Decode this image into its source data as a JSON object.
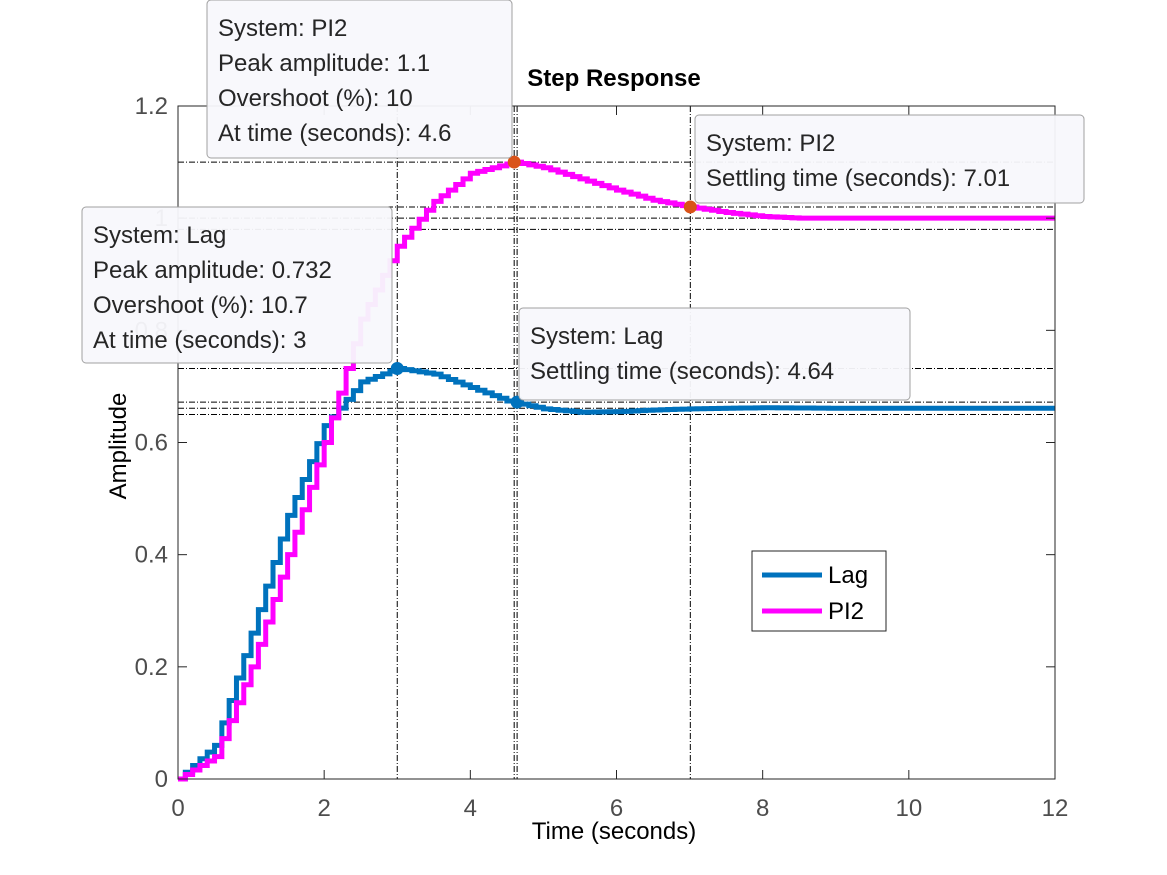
{
  "chart_data": {
    "type": "line",
    "title": "Step Response",
    "xlabel": "Time (seconds)",
    "ylabel": "Amplitude",
    "xlim": [
      0,
      12
    ],
    "ylim": [
      0,
      1.2
    ],
    "xticks": [
      0,
      2,
      4,
      6,
      8,
      10,
      12
    ],
    "yticks": [
      0,
      0.2,
      0.4,
      0.6,
      0.8,
      1,
      1.2
    ],
    "xtick_labels": [
      "0",
      "2",
      "4",
      "6",
      "8",
      "10",
      "12"
    ],
    "ytick_labels": [
      "0",
      "0.2",
      "0.4",
      "0.6",
      "0.8",
      "1",
      "1.2"
    ],
    "grid": false,
    "legend_position": "lower-right",
    "series": [
      {
        "name": "Lag",
        "color": "#0072BD",
        "sample_time": 0.1,
        "x": [
          0,
          0.5,
          1,
          1.5,
          2,
          2.5,
          3,
          3.5,
          4,
          4.5,
          5,
          5.5,
          6,
          6.5,
          7,
          8,
          9,
          10,
          11,
          12
        ],
        "y": [
          0,
          0.06,
          0.26,
          0.47,
          0.63,
          0.708,
          0.732,
          0.722,
          0.698,
          0.674,
          0.66,
          0.654,
          0.655,
          0.658,
          0.66,
          0.662,
          0.661,
          0.661,
          0.661,
          0.661
        ]
      },
      {
        "name": "PI2",
        "color": "#FF00FF",
        "sample_time": 0.1,
        "x": [
          0,
          0.5,
          1,
          1.5,
          2,
          2.5,
          3,
          3.5,
          4,
          4.6,
          5,
          5.5,
          6,
          6.5,
          7,
          7.5,
          8,
          8.5,
          9,
          10,
          11,
          12
        ],
        "y": [
          0,
          0.04,
          0.2,
          0.4,
          0.6,
          0.82,
          0.95,
          1.03,
          1.08,
          1.1,
          1.09,
          1.07,
          1.05,
          1.032,
          1.02,
          1.01,
          1.003,
          1.0,
          1.0,
          1.0,
          1.0,
          1.0
        ]
      }
    ],
    "markers": [
      {
        "series": "PI2",
        "x": 4.6,
        "y": 1.1,
        "color": "#D95319"
      },
      {
        "series": "PI2",
        "x": 7.01,
        "y": 1.02,
        "color": "#D95319"
      },
      {
        "series": "Lag",
        "x": 3,
        "y": 0.732,
        "color": "#0072BD"
      },
      {
        "series": "Lag",
        "x": 4.64,
        "y": 0.672,
        "color": "#0072BD"
      }
    ],
    "reference_lines": [
      {
        "y": 1.1
      },
      {
        "y": 1.02
      },
      {
        "y": 1.0
      },
      {
        "y": 0.98
      },
      {
        "y": 0.732
      },
      {
        "y": 0.672
      },
      {
        "y": 0.661
      },
      {
        "y": 0.65
      },
      {
        "x": 3.0
      },
      {
        "x": 4.6
      },
      {
        "x": 4.64
      },
      {
        "x": 7.01
      }
    ],
    "datatips": [
      {
        "lines": [
          "System: PI2",
          "Peak amplitude: 1.1",
          "Overshoot (%): 10",
          "At time (seconds): 4.6"
        ]
      },
      {
        "lines": [
          "System: PI2",
          "Settling time (seconds): 7.01"
        ]
      },
      {
        "lines": [
          "System: Lag",
          "Peak amplitude: 0.732",
          "Overshoot (%): 10.7",
          "At time (seconds): 3"
        ]
      },
      {
        "lines": [
          "System: Lag",
          "Settling time (seconds): 4.64"
        ]
      }
    ]
  }
}
